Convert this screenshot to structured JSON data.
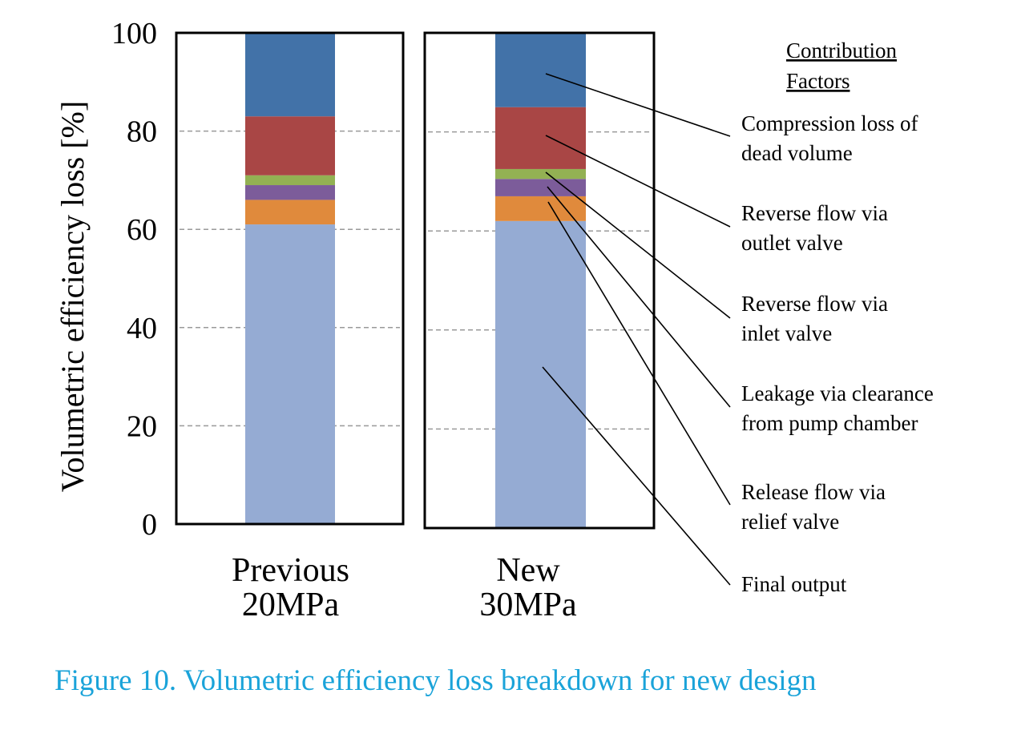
{
  "chart_data": {
    "type": "bar",
    "stacked": true,
    "ylabel": "Volumetric efficiency loss [%]",
    "ylim": [
      0,
      100
    ],
    "yticks": [
      "0",
      "20",
      "40",
      "60",
      "80",
      "100"
    ],
    "grid": true,
    "panels": [
      {
        "category": [
          "Previous",
          "20MPa"
        ],
        "segments": [
          {
            "factor": "Final output",
            "value": 61,
            "color": "#95abd3"
          },
          {
            "factor": "Release flow via relief valve",
            "value": 5,
            "color": "#e08a3c"
          },
          {
            "factor": "Leakage via clearance from pump chamber",
            "value": 3,
            "color": "#7c5c9a"
          },
          {
            "factor": "Reverse flow via inlet valve",
            "value": 2,
            "color": "#93b153"
          },
          {
            "factor": "Reverse flow via outlet valve",
            "value": 12,
            "color": "#a94645"
          },
          {
            "factor": "Compression loss of dead volume",
            "value": 17,
            "color": "#4272a8"
          }
        ]
      },
      {
        "category": [
          "New",
          "30MPa"
        ],
        "segments": [
          {
            "factor": "Final output",
            "value": 62,
            "color": "#95abd3"
          },
          {
            "factor": "Release flow via relief valve",
            "value": 5,
            "color": "#e08a3c"
          },
          {
            "factor": "Leakage via clearance from pump chamber",
            "value": 3.5,
            "color": "#7c5c9a"
          },
          {
            "factor": "Reverse flow via inlet valve",
            "value": 2,
            "color": "#93b153"
          },
          {
            "factor": "Reverse flow via outlet valve",
            "value": 12.5,
            "color": "#a94645"
          },
          {
            "factor": "Compression loss of dead volume",
            "value": 15,
            "color": "#4272a8"
          }
        ]
      }
    ],
    "legend": {
      "title": [
        "Contribution",
        "Factors"
      ],
      "placement": "right",
      "entries": [
        {
          "factor": "Compression loss of dead volume",
          "lines": [
            "Compression loss of",
            "dead volume"
          ]
        },
        {
          "factor": "Reverse flow via outlet valve",
          "lines": [
            "Reverse flow via",
            "outlet valve"
          ]
        },
        {
          "factor": "Reverse flow via inlet valve",
          "lines": [
            "Reverse flow via",
            "inlet valve"
          ]
        },
        {
          "factor": "Leakage via clearance from pump chamber",
          "lines": [
            "Leakage via clearance",
            "from pump chamber"
          ]
        },
        {
          "factor": "Release flow via relief valve",
          "lines": [
            "Release flow via",
            "relief valve"
          ]
        },
        {
          "factor": "Final output",
          "lines": [
            "Final output"
          ]
        }
      ]
    }
  },
  "caption": "Figure 10. Volumetric efficiency loss breakdown for new design"
}
